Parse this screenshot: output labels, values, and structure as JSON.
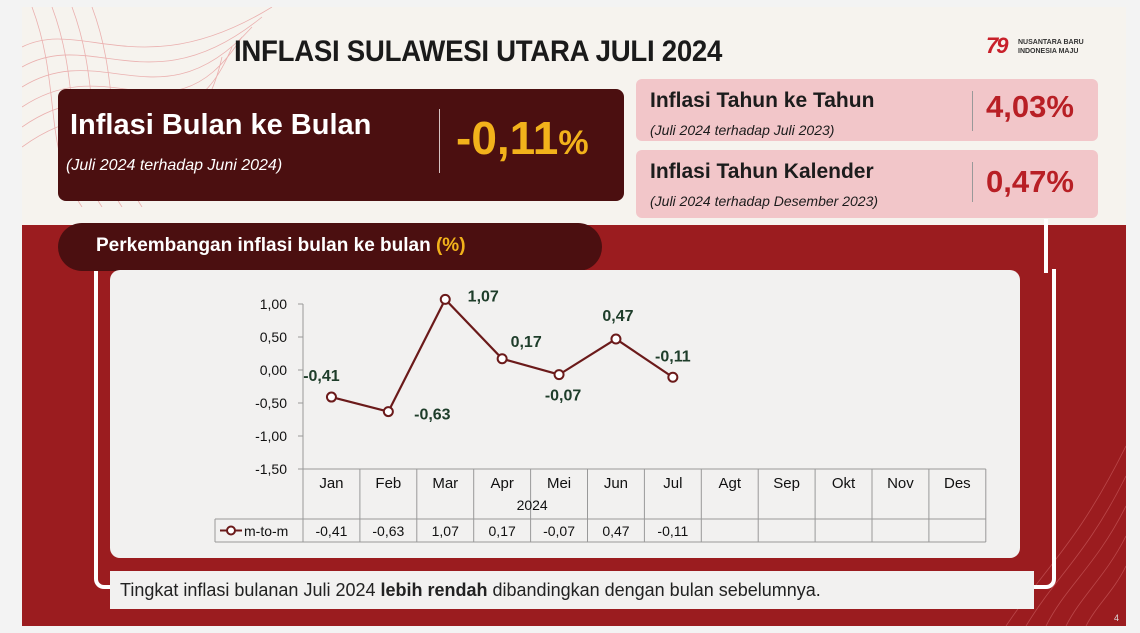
{
  "title": "INFLASI SULAWESI UTARA JULI 2024",
  "logo": {
    "mark": "79",
    "line1": "NUSANTARA BARU",
    "line2": "INDONESIA MAJU"
  },
  "mtm": {
    "label": "Inflasi Bulan ke Bulan",
    "sub": "(Juli 2024 terhadap Juni 2024)",
    "value": "-0,11",
    "unit": "%"
  },
  "yoy": {
    "label": "Inflasi Tahun ke Tahun",
    "sub": "(Juli 2024 terhadap Juli 2023)",
    "value": "4,03%"
  },
  "ytd": {
    "label": "Inflasi Tahun Kalender",
    "sub": "(Juli 2024 terhadap Desember 2023)",
    "value": "0,47%"
  },
  "section": {
    "title": "Perkembangan inflasi bulan ke bulan ",
    "unit": "(%)"
  },
  "caption": {
    "before": "Tingkat inflasi bulanan Juli 2024 ",
    "bold": "lebih rendah",
    "after": " dibandingkan dengan bulan sebelumnya."
  },
  "page_number": "4",
  "colors": {
    "dark_maroon": "#4b0f10",
    "red_band": "#9b1c1f",
    "gold": "#f2b21b",
    "pink": "#f2c6c9",
    "line": "#6b1a1a",
    "label_green": "#1e3d2a"
  },
  "chart_data": {
    "type": "line",
    "categories": [
      "Jan",
      "Feb",
      "Mar",
      "Apr",
      "Mei",
      "Jun",
      "Jul",
      "Agt",
      "Sep",
      "Okt",
      "Nov",
      "Des"
    ],
    "year_label": "2024",
    "series": [
      {
        "name": "m-to-m",
        "values": [
          -0.41,
          -0.63,
          1.07,
          0.17,
          -0.07,
          0.47,
          -0.11,
          null,
          null,
          null,
          null,
          null
        ],
        "labels": [
          "-0,41",
          "-0,63",
          "1,07",
          "0,17",
          "-0,07",
          "0,47",
          "-0,11",
          "",
          "",
          "",
          "",
          ""
        ]
      }
    ],
    "yticks": [
      "1,00",
      "0,50",
      "0,00",
      "-0,50",
      "-1,00",
      "-1,50"
    ],
    "ylim": [
      -1.5,
      1.0
    ],
    "grid": false,
    "data_table": true
  }
}
